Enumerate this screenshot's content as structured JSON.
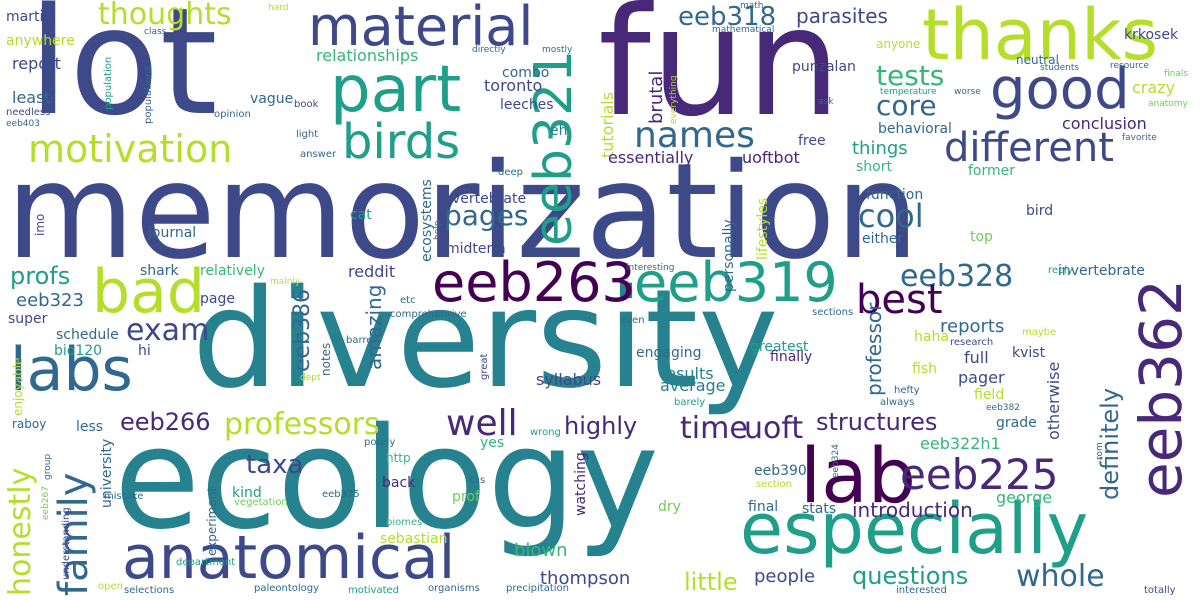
{
  "palette": {
    "dark_purple": "#440154",
    "indigo": "#482878",
    "blue": "#3e4989",
    "slate": "#31688e",
    "teal": "#26828e",
    "sea": "#1f9e89",
    "green": "#35b779",
    "lime": "#6ece58",
    "yellow_green": "#b5de2b",
    "yellow": "#fde725"
  },
  "words": [
    {
      "text": "memorization",
      "color": "blue"
    },
    {
      "text": "diversity",
      "color": "teal"
    },
    {
      "text": "fun",
      "color": "indigo"
    },
    {
      "text": "lot",
      "color": "blue"
    },
    {
      "text": "ecology",
      "color": "teal"
    },
    {
      "text": "thanks",
      "color": "yellow_green"
    },
    {
      "text": "material",
      "color": "blue"
    },
    {
      "text": "part",
      "color": "sea"
    },
    {
      "text": "good",
      "color": "blue"
    },
    {
      "text": "birds",
      "color": "sea"
    },
    {
      "text": "motivation",
      "color": "yellow_green"
    },
    {
      "text": "different",
      "color": "blue"
    },
    {
      "text": "names",
      "color": "slate"
    },
    {
      "text": "bad",
      "color": "yellow_green"
    },
    {
      "text": "labs",
      "color": "slate"
    },
    {
      "text": "eeb263",
      "color": "dark_purple"
    },
    {
      "text": "eeb319",
      "color": "sea"
    },
    {
      "text": "eeb321",
      "color": "sea"
    },
    {
      "text": "eeb362",
      "color": "indigo"
    },
    {
      "text": "lab",
      "color": "dark_purple"
    },
    {
      "text": "especially",
      "color": "sea"
    },
    {
      "text": "anatomical",
      "color": "blue"
    },
    {
      "text": "eeb225",
      "color": "indigo"
    },
    {
      "text": "family",
      "color": "slate"
    },
    {
      "text": "honestly",
      "color": "yellow_green"
    },
    {
      "text": "whole",
      "color": "slate"
    },
    {
      "text": "thoughts",
      "color": "yellow_green"
    },
    {
      "text": "eeb318",
      "color": "slate"
    },
    {
      "text": "parasites",
      "color": "blue"
    },
    {
      "text": "tests",
      "color": "green"
    },
    {
      "text": "core",
      "color": "slate"
    },
    {
      "text": "cool",
      "color": "slate"
    },
    {
      "text": "pages",
      "color": "slate"
    },
    {
      "text": "exam",
      "color": "blue"
    },
    {
      "text": "eeb328",
      "color": "slate"
    },
    {
      "text": "best",
      "color": "dark_purple"
    },
    {
      "text": "well",
      "color": "indigo"
    },
    {
      "text": "time",
      "color": "indigo"
    },
    {
      "text": "uoft",
      "color": "indigo"
    },
    {
      "text": "professors",
      "color": "yellow_green"
    },
    {
      "text": "structures",
      "color": "indigo"
    },
    {
      "text": "profs",
      "color": "sea"
    },
    {
      "text": "eeb266",
      "color": "indigo"
    },
    {
      "text": "taxa",
      "color": "blue"
    },
    {
      "text": "highly",
      "color": "indigo"
    },
    {
      "text": "definitely",
      "color": "slate"
    },
    {
      "text": "questions",
      "color": "sea"
    },
    {
      "text": "little",
      "color": "yellow_green"
    },
    {
      "text": "introduction",
      "color": "indigo"
    },
    {
      "text": "people",
      "color": "blue"
    },
    {
      "text": "thompson",
      "color": "blue"
    },
    {
      "text": "blown",
      "color": "green"
    },
    {
      "text": "eeb386",
      "color": "slate"
    },
    {
      "text": "amazing",
      "color": "slate"
    },
    {
      "text": "reports",
      "color": "slate"
    },
    {
      "text": "eeb323",
      "color": "slate"
    },
    {
      "text": "relationships",
      "color": "green"
    },
    {
      "text": "report",
      "color": "blue"
    },
    {
      "text": "least",
      "color": "slate"
    },
    {
      "text": "martin",
      "color": "blue"
    },
    {
      "text": "anywhere",
      "color": "yellow_green"
    },
    {
      "text": "toronto",
      "color": "blue"
    },
    {
      "text": "combo",
      "color": "slate"
    },
    {
      "text": "leeches",
      "color": "blue"
    },
    {
      "text": "tutorials",
      "color": "yellow_green"
    },
    {
      "text": "brutal",
      "color": "indigo"
    },
    {
      "text": "vague",
      "color": "slate"
    },
    {
      "text": "punzalan",
      "color": "blue"
    },
    {
      "text": "krkosek",
      "color": "blue"
    },
    {
      "text": "crazy",
      "color": "yellow_green"
    },
    {
      "text": "conclusion",
      "color": "indigo"
    },
    {
      "text": "things",
      "color": "sea"
    },
    {
      "text": "essentially",
      "color": "indigo"
    },
    {
      "text": "uoftbot",
      "color": "indigo"
    },
    {
      "text": "behavioral",
      "color": "slate"
    },
    {
      "text": "free",
      "color": "blue"
    },
    {
      "text": "short",
      "color": "green"
    },
    {
      "text": "function",
      "color": "slate"
    },
    {
      "text": "former",
      "color": "green"
    },
    {
      "text": "bird",
      "color": "blue"
    },
    {
      "text": "vertebrate",
      "color": "blue"
    },
    {
      "text": "midterm",
      "color": "blue"
    },
    {
      "text": "journal",
      "color": "slate"
    },
    {
      "text": "ecosystems",
      "color": "slate"
    },
    {
      "text": "reddit",
      "color": "blue"
    },
    {
      "text": "shark",
      "color": "slate"
    },
    {
      "text": "relatively",
      "color": "green"
    },
    {
      "text": "page",
      "color": "blue"
    },
    {
      "text": "super",
      "color": "blue"
    },
    {
      "text": "schedule",
      "color": "slate"
    },
    {
      "text": "bio120",
      "color": "sea"
    },
    {
      "text": "hi",
      "color": "blue"
    },
    {
      "text": "notes",
      "color": "slate"
    },
    {
      "text": "professor",
      "color": "slate"
    },
    {
      "text": "full",
      "color": "blue"
    },
    {
      "text": "pager",
      "color": "blue"
    },
    {
      "text": "haha",
      "color": "yellow_green"
    },
    {
      "text": "engaging",
      "color": "slate"
    },
    {
      "text": "results",
      "color": "teal"
    },
    {
      "text": "average",
      "color": "teal"
    },
    {
      "text": "syllabus",
      "color": "blue"
    },
    {
      "text": "greatest",
      "color": "sea"
    },
    {
      "text": "finally",
      "color": "indigo"
    },
    {
      "text": "fish",
      "color": "yellow_green"
    },
    {
      "text": "otherwise",
      "color": "blue"
    },
    {
      "text": "field",
      "color": "yellow_green"
    },
    {
      "text": "grade",
      "color": "slate"
    },
    {
      "text": "eeb322h1",
      "color": "green"
    },
    {
      "text": "kvist",
      "color": "blue"
    },
    {
      "text": "invertebrate",
      "color": "slate"
    },
    {
      "text": "less",
      "color": "slate"
    },
    {
      "text": "university",
      "color": "slate"
    },
    {
      "text": "enjoyable",
      "color": "yellow_green"
    },
    {
      "text": "raboy",
      "color": "slate"
    },
    {
      "text": "http",
      "color": "green"
    },
    {
      "text": "kind",
      "color": "sea"
    },
    {
      "text": "experiment",
      "color": "slate"
    },
    {
      "text": "back",
      "color": "indigo"
    },
    {
      "text": "prof",
      "color": "lime"
    },
    {
      "text": "sebastian",
      "color": "yellow_green"
    },
    {
      "text": "dry",
      "color": "lime"
    },
    {
      "text": "stats",
      "color": "slate"
    },
    {
      "text": "final",
      "color": "slate"
    },
    {
      "text": "george",
      "color": "green"
    },
    {
      "text": "eeb390",
      "color": "slate"
    },
    {
      "text": "watching",
      "color": "indigo"
    },
    {
      "text": "top",
      "color": "lime"
    },
    {
      "text": "either",
      "color": "slate"
    },
    {
      "text": "personally",
      "color": "slate"
    },
    {
      "text": "lifestyles",
      "color": "yellow_green"
    },
    {
      "text": "cat",
      "color": "sea"
    },
    {
      "text": "imo",
      "color": "blue"
    },
    {
      "text": "eh",
      "color": "teal"
    },
    {
      "text": "yes",
      "color": "green"
    },
    {
      "text": "eeb375",
      "color": "slate"
    },
    {
      "text": "biomes",
      "color": "green"
    },
    {
      "text": "department",
      "color": "sea"
    },
    {
      "text": "vegetation",
      "color": "lime"
    },
    {
      "text": "paleontology",
      "color": "slate"
    },
    {
      "text": "organisms",
      "color": "slate"
    },
    {
      "text": "precipitation",
      "color": "slate"
    },
    {
      "text": "motivated",
      "color": "sea"
    },
    {
      "text": "selections",
      "color": "slate"
    },
    {
      "text": "interested",
      "color": "slate"
    },
    {
      "text": "totally",
      "color": "blue"
    },
    {
      "text": "open",
      "color": "yellow_green"
    },
    {
      "text": "understanding",
      "color": "blue"
    },
    {
      "text": "mistake",
      "color": "slate"
    },
    {
      "text": "eeb267",
      "color": "lime"
    },
    {
      "text": "group",
      "color": "slate"
    },
    {
      "text": "poorly",
      "color": "slate"
    },
    {
      "text": "wrong",
      "color": "sea"
    },
    {
      "text": "barely",
      "color": "sea"
    },
    {
      "text": "hefty",
      "color": "slate"
    },
    {
      "text": "always",
      "color": "slate"
    },
    {
      "text": "eeb382",
      "color": "slate"
    },
    {
      "text": "eeb324",
      "color": "slate"
    },
    {
      "text": "rom",
      "color": "slate"
    },
    {
      "text": "tas",
      "color": "slate"
    },
    {
      "text": "section",
      "color": "yellow_green"
    },
    {
      "text": "great",
      "color": "blue"
    },
    {
      "text": "even",
      "color": "slate"
    },
    {
      "text": "maybe",
      "color": "yellow_green"
    },
    {
      "text": "research",
      "color": "blue"
    },
    {
      "text": "sections",
      "color": "slate"
    },
    {
      "text": "dept",
      "color": "yellow_green"
    },
    {
      "text": "barrett",
      "color": "slate"
    },
    {
      "text": "comprehensive",
      "color": "slate"
    },
    {
      "text": "etc",
      "color": "slate"
    },
    {
      "text": "mainly",
      "color": "yellow_green"
    },
    {
      "text": "interesting",
      "color": "slate"
    },
    {
      "text": "reply",
      "color": "sea"
    },
    {
      "text": "help",
      "color": "slate"
    },
    {
      "text": "deep",
      "color": "slate"
    },
    {
      "text": "answer",
      "color": "slate"
    },
    {
      "text": "light",
      "color": "slate"
    },
    {
      "text": "book",
      "color": "blue"
    },
    {
      "text": "opinion",
      "color": "slate"
    },
    {
      "text": "populations",
      "color": "slate"
    },
    {
      "text": "population",
      "color": "sea"
    },
    {
      "text": "needless",
      "color": "blue"
    },
    {
      "text": "eeb403",
      "color": "slate"
    },
    {
      "text": "class",
      "color": "slate"
    },
    {
      "text": "hard",
      "color": "yellow_green"
    },
    {
      "text": "math",
      "color": "slate"
    },
    {
      "text": "mathematical",
      "color": "slate"
    },
    {
      "text": "directly",
      "color": "slate"
    },
    {
      "text": "mostly",
      "color": "slate"
    },
    {
      "text": "everything",
      "color": "yellow_green"
    },
    {
      "text": "neutral",
      "color": "slate"
    },
    {
      "text": "students",
      "color": "slate"
    },
    {
      "text": "resource",
      "color": "slate"
    },
    {
      "text": "finals",
      "color": "lime"
    },
    {
      "text": "anatomy",
      "color": "lime"
    },
    {
      "text": "temperature",
      "color": "sea"
    },
    {
      "text": "worse",
      "color": "slate"
    },
    {
      "text": "ask",
      "color": "slate"
    },
    {
      "text": "favorite",
      "color": "slate"
    },
    {
      "text": "anyone",
      "color": "yellow_green"
    }
  ]
}
